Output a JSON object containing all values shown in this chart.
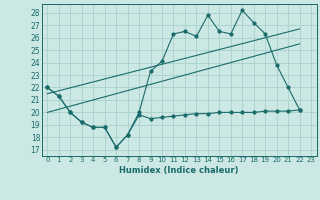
{
  "xlabel": "Humidex (Indice chaleur)",
  "background_color": "#cce8e4",
  "grid_color": "#aad0cc",
  "line_color": "#1a6b6b",
  "xlim": [
    -0.5,
    23.5
  ],
  "ylim": [
    16.5,
    28.7
  ],
  "yticks": [
    17,
    18,
    19,
    20,
    21,
    22,
    23,
    24,
    25,
    26,
    27,
    28
  ],
  "xticks": [
    0,
    1,
    2,
    3,
    4,
    5,
    6,
    7,
    8,
    9,
    10,
    11,
    12,
    13,
    14,
    15,
    16,
    17,
    18,
    19,
    20,
    21,
    22,
    23
  ],
  "line1_x": [
    0,
    1,
    2,
    3,
    4,
    5,
    6,
    7,
    8,
    9,
    10,
    11,
    12,
    13,
    14,
    15,
    16,
    17,
    18,
    19,
    20,
    21,
    22
  ],
  "line1_y": [
    22.0,
    21.3,
    20.0,
    19.2,
    18.8,
    18.8,
    17.2,
    18.2,
    20.0,
    23.3,
    24.1,
    26.3,
    26.5,
    26.1,
    27.8,
    26.5,
    26.3,
    28.2,
    27.2,
    26.3,
    23.8,
    22.0,
    20.2
  ],
  "line2_x": [
    0,
    1,
    2,
    3,
    4,
    5,
    6,
    7,
    8,
    9,
    10,
    11,
    12,
    13,
    14,
    15,
    16,
    17,
    18,
    19,
    20,
    21,
    22
  ],
  "line2_y": [
    22.0,
    21.3,
    20.0,
    19.2,
    18.8,
    18.8,
    17.2,
    18.2,
    19.8,
    19.5,
    19.6,
    19.7,
    19.8,
    19.9,
    19.9,
    20.0,
    20.0,
    20.0,
    20.0,
    20.1,
    20.1,
    20.1,
    20.2
  ],
  "line3_x": [
    0,
    22
  ],
  "line3_y": [
    21.5,
    26.7
  ],
  "line4_x": [
    0,
    22
  ],
  "line4_y": [
    20.0,
    25.5
  ]
}
